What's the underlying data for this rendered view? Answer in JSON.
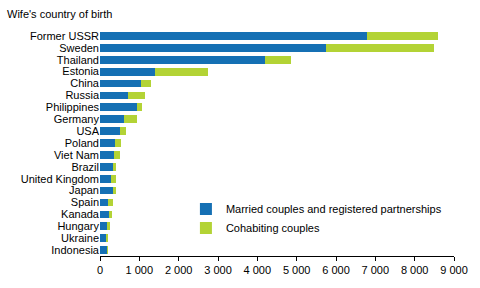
{
  "chart_data": {
    "type": "bar",
    "orientation": "horizontal",
    "stacked": true,
    "ylabel": "Wife's country of birth",
    "categories": [
      "Former USSR",
      "Sweden",
      "Thailand",
      "Estonia",
      "China",
      "Russia",
      "Philippines",
      "Germany",
      "USA",
      "Poland",
      "Viet Nam",
      "Brazil",
      "United Kingdom",
      "Japan",
      "Spain",
      "Kanada",
      "Hungary",
      "Ukraine",
      "Indonesia"
    ],
    "series": [
      {
        "name": "Married couples and registered partnerships",
        "color": "#1570b4",
        "values": [
          6800,
          5750,
          4200,
          1400,
          1050,
          700,
          950,
          600,
          500,
          380,
          350,
          330,
          280,
          330,
          200,
          230,
          170,
          170,
          180
        ]
      },
      {
        "name": "Cohabiting couples",
        "color": "#b3d335",
        "values": [
          1800,
          2750,
          650,
          1350,
          250,
          450,
          120,
          350,
          150,
          150,
          150,
          80,
          120,
          80,
          120,
          80,
          80,
          30,
          20
        ]
      }
    ],
    "xlim": [
      0,
      9000
    ],
    "xticks": [
      0,
      {
        "value": 1000,
        "label": "1 000"
      },
      {
        "value": 2000,
        "label": "2 000"
      },
      {
        "value": 3000,
        "label": "3 000"
      },
      {
        "value": 4000,
        "label": "4 000"
      },
      {
        "value": 5000,
        "label": "5 000"
      },
      {
        "value": 6000,
        "label": "6 000"
      },
      {
        "value": 7000,
        "label": "7 000"
      },
      {
        "value": 8000,
        "label": "8 000"
      },
      {
        "value": 9000,
        "label": "9 000"
      }
    ],
    "grid": false,
    "legend": "lower right"
  }
}
